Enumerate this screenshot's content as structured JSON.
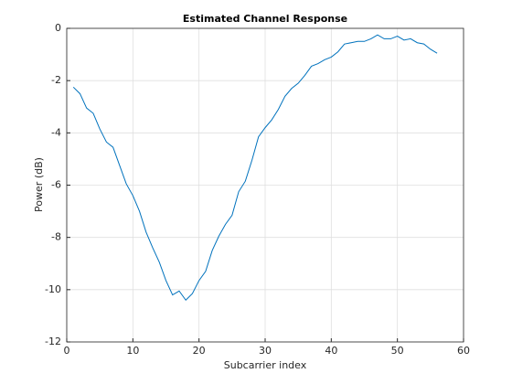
{
  "chart_data": {
    "type": "line",
    "title": "Estimated Channel Response",
    "xlabel": "Subcarrier index",
    "ylabel": "Power (dB)",
    "x": [
      1,
      2,
      3,
      4,
      5,
      6,
      7,
      8,
      9,
      10,
      11,
      12,
      13,
      14,
      15,
      16,
      17,
      18,
      19,
      20,
      21,
      22,
      23,
      24,
      25,
      26,
      27,
      28,
      29,
      30,
      31,
      32,
      33,
      34,
      35,
      36,
      37,
      38,
      39,
      40,
      41,
      42,
      43,
      44,
      45,
      46,
      47,
      48,
      49,
      50,
      51,
      52,
      53,
      54,
      55,
      56
    ],
    "series": [
      {
        "color": "#0072bd",
        "values": [
          -2.25,
          -2.5,
          -3.05,
          -3.25,
          -3.85,
          -4.35,
          -4.55,
          -5.25,
          -5.95,
          -6.4,
          -7.0,
          -7.8,
          -8.4,
          -8.95,
          -9.65,
          -10.2,
          -10.05,
          -10.4,
          -10.15,
          -9.65,
          -9.3,
          -8.5,
          -7.95,
          -7.5,
          -7.15,
          -6.25,
          -5.85,
          -5.05,
          -4.15,
          -3.8,
          -3.5,
          -3.1,
          -2.6,
          -2.3,
          -2.1,
          -1.8,
          -1.45,
          -1.35,
          -1.2,
          -1.1,
          -0.9,
          -0.6,
          -0.55,
          -0.5,
          -0.5,
          -0.4,
          -0.25,
          -0.4,
          -0.4,
          -0.3,
          -0.45,
          -0.4,
          -0.55,
          -0.6,
          -0.8,
          -0.95
        ]
      }
    ],
    "xlim": [
      0,
      60
    ],
    "xticks": [
      0,
      10,
      20,
      30,
      40,
      50,
      60
    ],
    "ylim": [
      -12,
      0
    ],
    "yticks": [
      -12,
      -10,
      -8,
      -6,
      -4,
      -2,
      0
    ],
    "grid": true
  }
}
